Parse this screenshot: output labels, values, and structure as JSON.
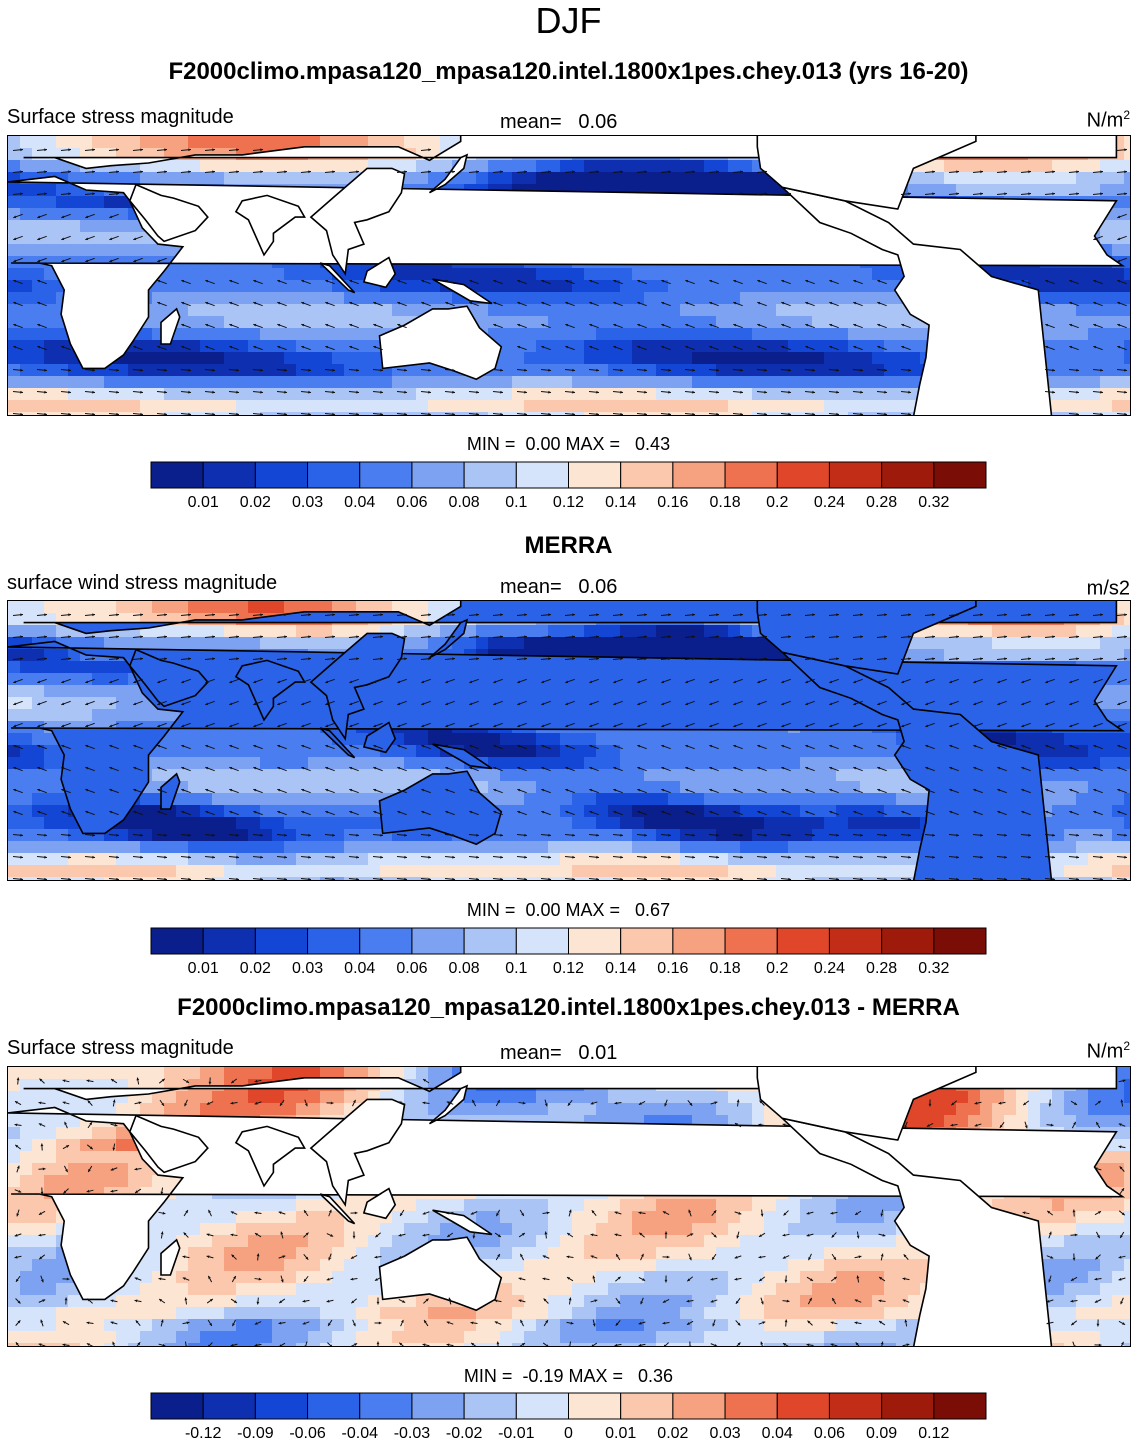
{
  "header": {
    "title": "DJF"
  },
  "panels": [
    {
      "title": "F2000climo.mpasa120_mpasa120.intel.1800x1pes.chey.013 (yrs 16-20)",
      "left_label": "Surface stress magnitude",
      "mean_label": "mean=",
      "mean_value": "0.06",
      "units": "N/m",
      "units_sup": "2",
      "min_label": "MIN =",
      "min_value": "0.00",
      "max_label": "MAX =",
      "max_value": "0.43"
    },
    {
      "title": "MERRA",
      "left_label": "surface wind stress magnitude",
      "mean_label": "mean=",
      "mean_value": "0.06",
      "units": "m/s2",
      "units_sup": "",
      "min_label": "MIN =",
      "min_value": "0.00",
      "max_label": "MAX =",
      "max_value": "0.67"
    },
    {
      "title": "F2000climo.mpasa120_mpasa120.intel.1800x1pes.chey.013 - MERRA",
      "left_label": "Surface stress magnitude",
      "mean_label": "mean=",
      "mean_value": "0.01",
      "units": "N/m",
      "units_sup": "2",
      "min_label": "MIN =",
      "min_value": "-0.19",
      "max_label": "MAX =",
      "max_value": "0.36"
    }
  ],
  "chart_data": [
    {
      "type": "heatmap",
      "title": "F2000climo.mpasa120_mpasa120.intel.1800x1pes.chey.013 (yrs 16-20)",
      "variable": "Surface stress magnitude",
      "units": "N/m2",
      "mean": 0.06,
      "min": 0.0,
      "max": 0.43,
      "colorbar_levels": [
        "0.01",
        "0.02",
        "0.03",
        "0.04",
        "0.06",
        "0.08",
        "0.1",
        "0.12",
        "0.14",
        "0.16",
        "0.18",
        "0.2",
        "0.24",
        "0.28",
        "0.32"
      ],
      "colors": [
        "#0a1e8c",
        "#0d2fb0",
        "#1446d6",
        "#2a62e8",
        "#4a7ef0",
        "#7ea2f2",
        "#aac4f6",
        "#d6e4fb",
        "#fde5d4",
        "#fbc8ad",
        "#f6a17f",
        "#ee7150",
        "#e0472a",
        "#c22d18",
        "#9e1a0a",
        "#7a0d05"
      ],
      "legend": "bottom"
    },
    {
      "type": "heatmap",
      "title": "MERRA",
      "variable": "surface wind stress magnitude",
      "units": "m/s2",
      "mean": 0.06,
      "min": 0.0,
      "max": 0.67,
      "colorbar_levels": [
        "0.01",
        "0.02",
        "0.03",
        "0.04",
        "0.06",
        "0.08",
        "0.1",
        "0.12",
        "0.14",
        "0.16",
        "0.18",
        "0.2",
        "0.24",
        "0.28",
        "0.32"
      ],
      "colors": [
        "#0a1e8c",
        "#0d2fb0",
        "#1446d6",
        "#2a62e8",
        "#4a7ef0",
        "#7ea2f2",
        "#aac4f6",
        "#d6e4fb",
        "#fde5d4",
        "#fbc8ad",
        "#f6a17f",
        "#ee7150",
        "#e0472a",
        "#c22d18",
        "#9e1a0a",
        "#7a0d05"
      ],
      "legend": "bottom"
    },
    {
      "type": "heatmap",
      "title": "F2000climo.mpasa120_mpasa120.intel.1800x1pes.chey.013 - MERRA",
      "variable": "Surface stress magnitude",
      "units": "N/m2",
      "mean": 0.01,
      "min": -0.19,
      "max": 0.36,
      "colorbar_levels": [
        "-0.12",
        "-0.09",
        "-0.06",
        "-0.04",
        "-0.03",
        "-0.02",
        "-0.01",
        "0",
        "0.01",
        "0.02",
        "0.03",
        "0.04",
        "0.06",
        "0.09",
        "0.12"
      ],
      "colors": [
        "#0a1e8c",
        "#0d2fb0",
        "#1446d6",
        "#2a62e8",
        "#4a7ef0",
        "#7ea2f2",
        "#aac4f6",
        "#d6e4fb",
        "#fde5d4",
        "#fbc8ad",
        "#f6a17f",
        "#ee7150",
        "#e0472a",
        "#c22d18",
        "#9e1a0a",
        "#7a0d05"
      ],
      "legend": "bottom"
    }
  ]
}
